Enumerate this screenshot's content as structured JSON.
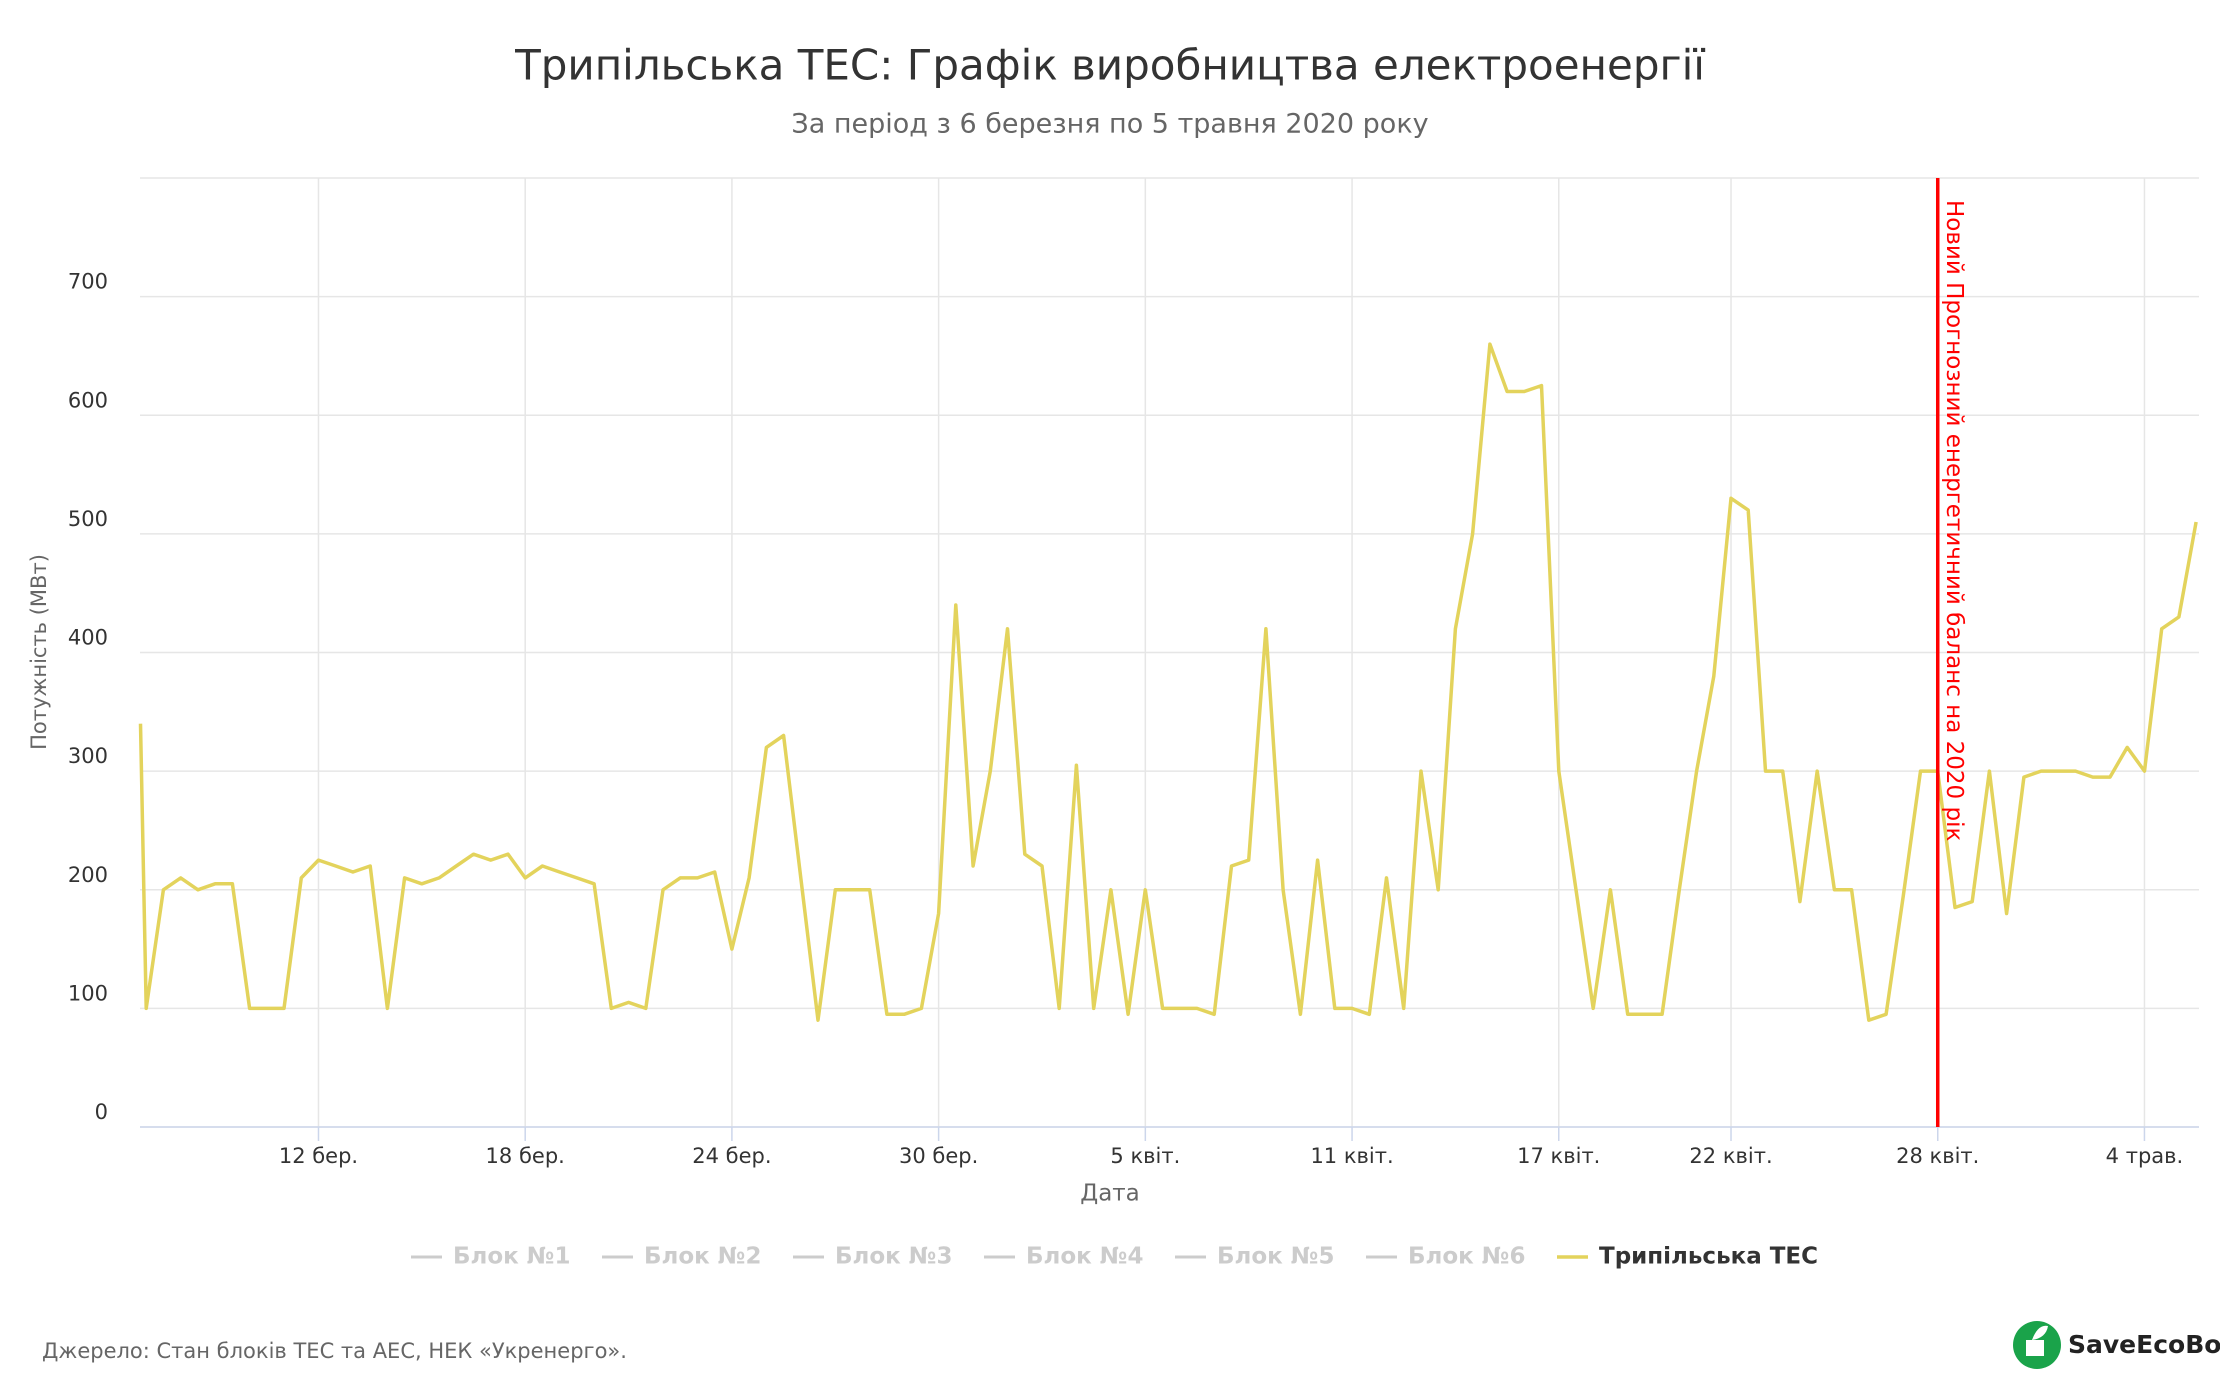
{
  "chart_data": {
    "type": "line",
    "title": "Трипільська ТЕС: Графік виробництва електроенергії",
    "subtitle": "За період з 6 березня по 5 травня 2020 року",
    "x_label": "Дата",
    "y_label": "Потужність (МВт)",
    "xlim": [
      "2020-03-06 19:40",
      "2020-05-05 14:00"
    ],
    "ylim": [
      0,
      800
    ],
    "yticks": [
      0,
      100,
      200,
      300,
      400,
      500,
      600,
      700
    ],
    "xticks": [
      {
        "value": "2020-03-12 00:00",
        "label": "12 бер."
      },
      {
        "value": "2020-03-18 00:00",
        "label": "18 бер."
      },
      {
        "value": "2020-03-24 00:00",
        "label": "24 бер."
      },
      {
        "value": "2020-03-30 00:00",
        "label": "30 бер."
      },
      {
        "value": "2020-04-05 00:00",
        "label": "5 квіт."
      },
      {
        "value": "2020-04-11 00:00",
        "label": "11 квіт."
      },
      {
        "value": "2020-04-17 00:00",
        "label": "17 квіт."
      },
      {
        "value": "2020-04-22 00:00",
        "label": "22 квіт."
      },
      {
        "value": "2020-04-28 00:00",
        "label": "28 квіт."
      },
      {
        "value": "2020-05-04 00:00",
        "label": "4 трав."
      }
    ],
    "grid": true,
    "x": [
      "2020-03-06 20:00",
      "2020-03-07 00:00",
      "2020-03-07 12:00",
      "2020-03-08 00:00",
      "2020-03-08 12:00",
      "2020-03-09 00:00",
      "2020-03-09 12:00",
      "2020-03-10 00:00",
      "2020-03-10 12:00",
      "2020-03-11 00:00",
      "2020-03-11 12:00",
      "2020-03-12 00:00",
      "2020-03-12 12:00",
      "2020-03-13 00:00",
      "2020-03-13 12:00",
      "2020-03-14 00:00",
      "2020-03-14 12:00",
      "2020-03-15 00:00",
      "2020-03-15 12:00",
      "2020-03-16 00:00",
      "2020-03-16 12:00",
      "2020-03-17 00:00",
      "2020-03-17 12:00",
      "2020-03-18 00:00",
      "2020-03-18 12:00",
      "2020-03-19 00:00",
      "2020-03-19 12:00",
      "2020-03-20 00:00",
      "2020-03-20 12:00",
      "2020-03-21 00:00",
      "2020-03-21 12:00",
      "2020-03-22 00:00",
      "2020-03-22 12:00",
      "2020-03-23 00:00",
      "2020-03-23 12:00",
      "2020-03-24 00:00",
      "2020-03-24 12:00",
      "2020-03-25 00:00",
      "2020-03-25 12:00",
      "2020-03-26 00:00",
      "2020-03-26 12:00",
      "2020-03-27 00:00",
      "2020-03-27 12:00",
      "2020-03-28 00:00",
      "2020-03-28 12:00",
      "2020-03-29 00:00",
      "2020-03-29 12:00",
      "2020-03-30 00:00",
      "2020-03-30 12:00",
      "2020-03-31 00:00",
      "2020-03-31 12:00",
      "2020-04-01 00:00",
      "2020-04-01 12:00",
      "2020-04-02 00:00",
      "2020-04-02 12:00",
      "2020-04-03 00:00",
      "2020-04-03 12:00",
      "2020-04-04 00:00",
      "2020-04-04 12:00",
      "2020-04-05 00:00",
      "2020-04-05 12:00",
      "2020-04-06 00:00",
      "2020-04-06 12:00",
      "2020-04-07 00:00",
      "2020-04-07 12:00",
      "2020-04-08 00:00",
      "2020-04-08 12:00",
      "2020-04-09 00:00",
      "2020-04-09 12:00",
      "2020-04-10 00:00",
      "2020-04-10 12:00",
      "2020-04-11 00:00",
      "2020-04-11 12:00",
      "2020-04-12 00:00",
      "2020-04-12 12:00",
      "2020-04-13 00:00",
      "2020-04-13 12:00",
      "2020-04-14 00:00",
      "2020-04-14 12:00",
      "2020-04-15 00:00",
      "2020-04-15 12:00",
      "2020-04-16 00:00",
      "2020-04-16 12:00",
      "2020-04-17 00:00",
      "2020-04-17 12:00",
      "2020-04-18 00:00",
      "2020-04-18 12:00",
      "2020-04-19 00:00",
      "2020-04-19 12:00",
      "2020-04-20 00:00",
      "2020-04-20 12:00",
      "2020-04-21 00:00",
      "2020-04-21 12:00",
      "2020-04-22 00:00",
      "2020-04-22 12:00",
      "2020-04-23 00:00",
      "2020-04-23 12:00",
      "2020-04-24 00:00",
      "2020-04-24 12:00",
      "2020-04-25 00:00",
      "2020-04-25 12:00",
      "2020-04-26 00:00",
      "2020-04-26 12:00",
      "2020-04-27 00:00",
      "2020-04-27 12:00",
      "2020-04-28 00:00",
      "2020-04-28 12:00",
      "2020-04-29 00:00",
      "2020-04-29 12:00",
      "2020-04-30 00:00",
      "2020-04-30 12:00",
      "2020-05-01 00:00",
      "2020-05-01 12:00",
      "2020-05-02 00:00",
      "2020-05-02 12:00",
      "2020-05-03 00:00",
      "2020-05-03 12:00",
      "2020-05-04 00:00",
      "2020-05-04 12:00",
      "2020-05-05 00:00",
      "2020-05-05 12:00"
    ],
    "series": [
      {
        "name": "Трипільська ТЕС",
        "color": "#e3d35c",
        "values": [
          340,
          100,
          200,
          210,
          200,
          205,
          205,
          100,
          100,
          100,
          210,
          225,
          220,
          215,
          220,
          100,
          210,
          205,
          210,
          220,
          230,
          225,
          230,
          210,
          220,
          215,
          210,
          205,
          100,
          105,
          100,
          200,
          210,
          210,
          215,
          150,
          210,
          320,
          330,
          210,
          90,
          200,
          200,
          200,
          95,
          95,
          100,
          180,
          440,
          220,
          300,
          420,
          230,
          220,
          100,
          305,
          100,
          200,
          95,
          200,
          100,
          100,
          100,
          95,
          220,
          225,
          420,
          200,
          95,
          225,
          100,
          100,
          95,
          210,
          100,
          300,
          200,
          420,
          500,
          660,
          620,
          620,
          625,
          300,
          200,
          100,
          200,
          95,
          95,
          95,
          200,
          300,
          380,
          530,
          520,
          300,
          300,
          190,
          300,
          200,
          200,
          90,
          95,
          195,
          300,
          300,
          185,
          190,
          300,
          180,
          295,
          300,
          300,
          300,
          295,
          295,
          320,
          300,
          420,
          430,
          510
        ]
      }
    ],
    "inactive_legend": [
      "Блок №1",
      "Блок №2",
      "Блок №3",
      "Блок №4",
      "Блок №5",
      "Блок №6"
    ],
    "annotations": [
      {
        "x": "2020-04-28 00:00",
        "text": "Новий Прогнозний енергетичний баланс на 2020 рік",
        "color": "#ff0000"
      }
    ],
    "credits": "Джерело: Стан блоків ТЕС та АЕС, НЕК «Укренерго».",
    "logo": "SaveEcoBot"
  }
}
